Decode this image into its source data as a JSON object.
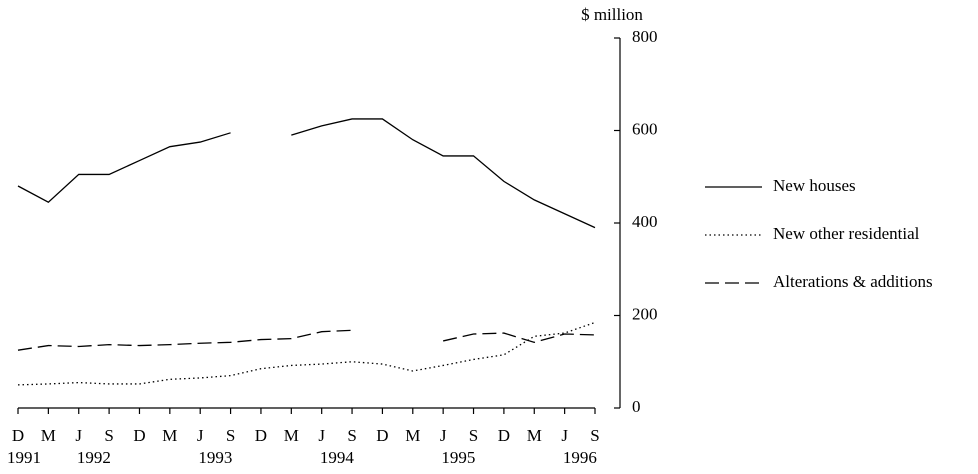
{
  "chart_data": {
    "type": "line",
    "y_axis_label": "$ million",
    "categories": [
      "D",
      "M",
      "J",
      "S",
      "D",
      "M",
      "J",
      "S",
      "D",
      "M",
      "J",
      "S",
      "D",
      "M",
      "J",
      "S",
      "D",
      "M",
      "J",
      "S"
    ],
    "year_labels": [
      "1991",
      null,
      "1992",
      null,
      null,
      null,
      "1993",
      null,
      null,
      null,
      "1994",
      null,
      null,
      null,
      "1995",
      null,
      null,
      null,
      "1996",
      null
    ],
    "series": [
      {
        "name": "New houses",
        "color": "#000000",
        "style": "solid",
        "values": [
          480,
          445,
          505,
          505,
          535,
          565,
          575,
          595,
          null,
          590,
          610,
          625,
          625,
          580,
          545,
          545,
          490,
          450,
          420,
          390
        ]
      },
      {
        "name": "New other residential",
        "color": "#000000",
        "style": "dotted",
        "values": [
          50,
          52,
          55,
          52,
          52,
          62,
          65,
          70,
          85,
          92,
          95,
          100,
          95,
          80,
          92,
          105,
          115,
          155,
          162,
          185
        ]
      },
      {
        "name": "Alterations & additions",
        "color": "#000000",
        "style": "dashed",
        "values": [
          125,
          135,
          133,
          137,
          135,
          137,
          140,
          142,
          148,
          150,
          165,
          168,
          null,
          null,
          145,
          160,
          162,
          142,
          160,
          158
        ]
      }
    ],
    "ylim": [
      0,
      800
    ],
    "yticks": [
      0,
      200,
      400,
      600,
      800
    ],
    "y_axis_side": "right",
    "grid": false
  }
}
